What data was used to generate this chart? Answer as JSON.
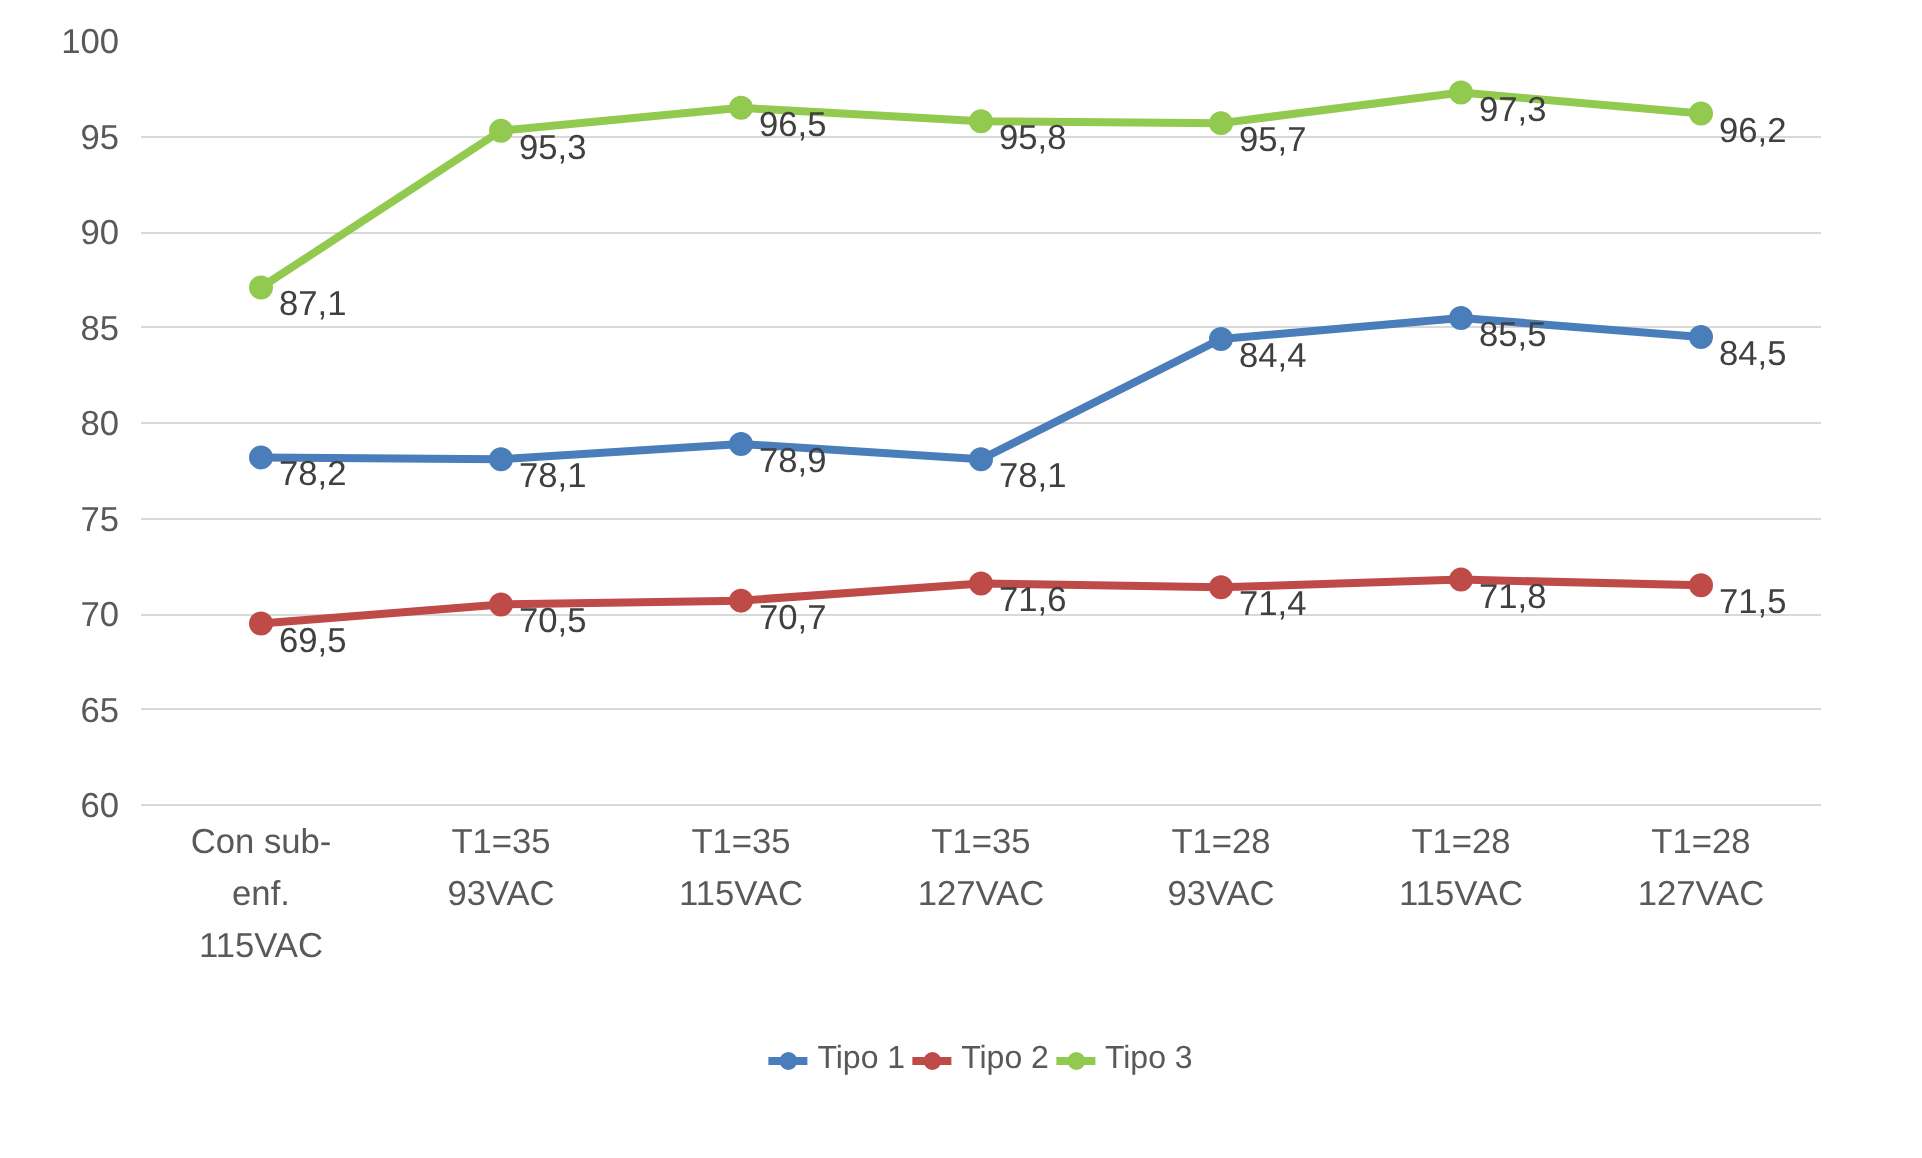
{
  "chart_data": {
    "type": "line",
    "categories": [
      "Con sub-\nenf.\n115VAC",
      "T1=35\n93VAC",
      "T1=35\n115VAC",
      "T1=35\n127VAC",
      "T1=28\n93VAC",
      "T1=28\n115VAC",
      "T1=28\n127VAC"
    ],
    "series": [
      {
        "name": "Tipo 1",
        "color": "#4a7ebb",
        "values": [
          78.2,
          78.1,
          78.9,
          78.1,
          84.4,
          85.5,
          84.5
        ],
        "value_labels": [
          "78,2",
          "78,1",
          "78,9",
          "78,1",
          "84,4",
          "85,5",
          "84,5"
        ]
      },
      {
        "name": "Tipo 2",
        "color": "#be4b48",
        "values": [
          69.5,
          70.5,
          70.7,
          71.6,
          71.4,
          71.8,
          71.5
        ],
        "value_labels": [
          "69,5",
          "70,5",
          "70,7",
          "71,6",
          "71,4",
          "71,8",
          "71,5"
        ]
      },
      {
        "name": "Tipo 3",
        "color": "#92c94f",
        "values": [
          87.1,
          95.3,
          96.5,
          95.8,
          95.7,
          97.3,
          96.2
        ],
        "value_labels": [
          "87,1",
          "95,3",
          "96,5",
          "95,8",
          "95,7",
          "97,3",
          "96,2"
        ]
      }
    ],
    "ylim": [
      60,
      100
    ],
    "yticks": [
      60,
      65,
      70,
      75,
      80,
      85,
      90,
      95,
      100
    ],
    "grid": "y",
    "legend": "bottom",
    "marker": "circle",
    "line_style": "solid"
  }
}
